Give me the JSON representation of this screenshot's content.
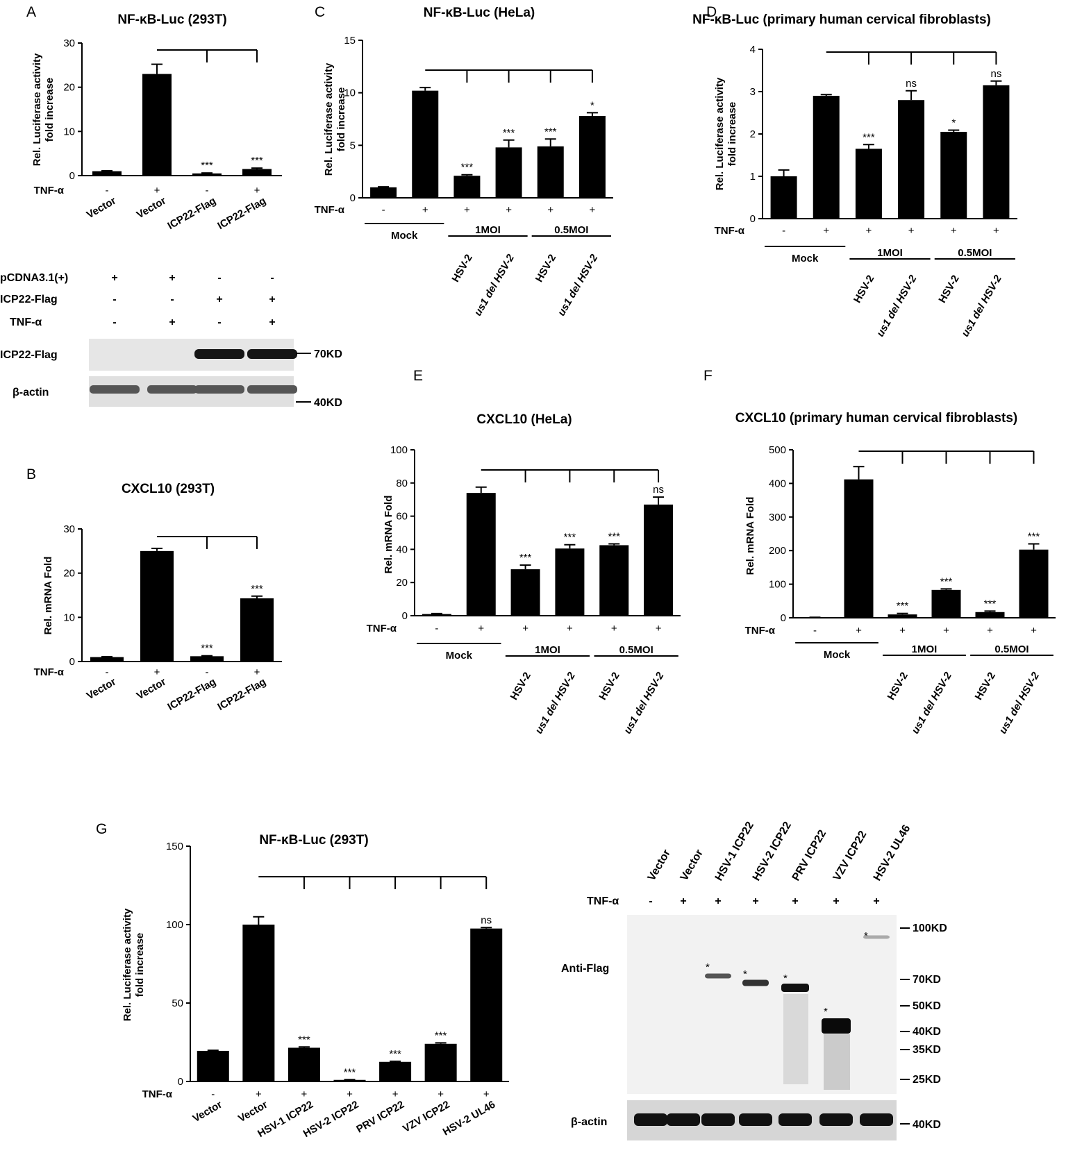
{
  "chart_data": [
    {
      "id": "A",
      "panel_label": "A",
      "type": "bar",
      "title": "NF-κB-Luc (293T)",
      "ylabel": [
        "Rel. Luciferase activity",
        "fold increase"
      ],
      "ylim": [
        0,
        30
      ],
      "yticks": [
        "0",
        "10",
        "20",
        "30"
      ],
      "categories": [
        "Vector",
        "Vector",
        "ICP22-Flag",
        "ICP22-Flag"
      ],
      "values": [
        1,
        23,
        0.5,
        1.5
      ],
      "errors": [
        0.1,
        2.2,
        0.1,
        0.2
      ],
      "significance": [
        "",
        "",
        "***",
        "***"
      ],
      "treatment_label": "TNF-α",
      "treatment": [
        "-",
        "+",
        "-",
        "+"
      ]
    },
    {
      "id": "B",
      "panel_label": "B",
      "type": "bar",
      "title": "CXCL10 (293T)",
      "ylabel": [
        "Rel. mRNA Fold"
      ],
      "ylim": [
        0,
        30
      ],
      "yticks": [
        "0",
        "10",
        "20",
        "30"
      ],
      "categories": [
        "Vector",
        "Vector",
        "ICP22-Flag",
        "ICP22-Flag"
      ],
      "values": [
        1,
        25,
        1.2,
        14.3
      ],
      "errors": [
        0.1,
        0.6,
        0.1,
        0.5
      ],
      "significance": [
        "",
        "",
        "***",
        "***"
      ],
      "treatment_label": "TNF-α",
      "treatment": [
        "-",
        "+",
        "-",
        "+"
      ]
    },
    {
      "id": "C",
      "panel_label": "C",
      "type": "bar",
      "title": "NF-κB-Luc (HeLa)",
      "ylabel": [
        "Rel. Luciferase activity",
        "fold increase"
      ],
      "ylim": [
        0,
        15
      ],
      "yticks": [
        "0",
        "5",
        "10",
        "15"
      ],
      "categories": [
        "",
        "",
        "HSV-2",
        "us1 del HSV-2",
        "HSV-2",
        "us1 del HSV-2"
      ],
      "values": [
        1,
        10.2,
        2.1,
        4.8,
        4.9,
        7.8
      ],
      "errors": [
        0.05,
        0.3,
        0.1,
        0.7,
        0.7,
        0.3
      ],
      "significance": [
        "",
        "",
        "***",
        "***",
        "***",
        "*"
      ],
      "treatment_label": "TNF-α",
      "treatment": [
        "-",
        "+",
        "+",
        "+",
        "+",
        "+"
      ],
      "groups": [
        "Mock",
        "1MOI",
        "0.5MOI"
      ]
    },
    {
      "id": "D",
      "panel_label": "D",
      "type": "bar",
      "title": "NF-κB-Luc (primary human cervical fibroblasts)",
      "ylabel": [
        "Rel. Luciferase activity",
        "fold increase"
      ],
      "ylim": [
        0,
        4
      ],
      "yticks": [
        "0",
        "1",
        "2",
        "3",
        "4"
      ],
      "categories": [
        "",
        "",
        "HSV-2",
        "us1 del HSV-2",
        "HSV-2",
        "us1 del HSV-2"
      ],
      "values": [
        1,
        2.9,
        1.65,
        2.8,
        2.05,
        3.15
      ],
      "errors": [
        0.15,
        0.03,
        0.1,
        0.22,
        0.04,
        0.1
      ],
      "significance": [
        "",
        "",
        "***",
        "ns",
        "*",
        "ns"
      ],
      "treatment_label": "TNF-α",
      "treatment": [
        "-",
        "+",
        "+",
        "+",
        "+",
        "+"
      ],
      "groups": [
        "Mock",
        "1MOI",
        "0.5MOI"
      ]
    },
    {
      "id": "E",
      "panel_label": "E",
      "type": "bar",
      "title": "CXCL10 (HeLa)",
      "ylabel": [
        "Rel. mRNA Fold"
      ],
      "ylim": [
        0,
        100
      ],
      "yticks": [
        "0",
        "20",
        "40",
        "60",
        "80",
        "100"
      ],
      "categories": [
        "",
        "",
        "HSV-2",
        "us1 del HSV-2",
        "HSV-2",
        "us1 del HSV-2"
      ],
      "values": [
        1,
        74,
        28,
        40.5,
        42.5,
        67
      ],
      "errors": [
        0.3,
        3.5,
        2.5,
        2.3,
        0.8,
        4.5
      ],
      "significance": [
        "",
        "",
        "***",
        "***",
        "***",
        "ns"
      ],
      "treatment_label": "TNF-α",
      "treatment": [
        "-",
        "+",
        "+",
        "+",
        "+",
        "+"
      ],
      "groups": [
        "Mock",
        "1MOI",
        "0.5MOI"
      ]
    },
    {
      "id": "F",
      "panel_label": "F",
      "type": "bar",
      "title": "CXCL10 (primary human cervical fibroblasts)",
      "ylabel": [
        "Rel. mRNA Fold"
      ],
      "ylim": [
        0,
        500
      ],
      "yticks": [
        "0",
        "100",
        "200",
        "300",
        "400",
        "500"
      ],
      "categories": [
        "",
        "",
        "HSV-2",
        "us1 del HSV-2",
        "HSV-2",
        "us1 del HSV-2"
      ],
      "values": [
        1,
        412,
        10,
        83,
        17,
        203
      ],
      "errors": [
        0.5,
        38,
        3,
        3,
        3,
        17
      ],
      "significance": [
        "",
        "",
        "***",
        "***",
        "***",
        "***"
      ],
      "treatment_label": "TNF-α",
      "treatment": [
        "-",
        "+",
        "+",
        "+",
        "+",
        "+"
      ],
      "groups": [
        "Mock",
        "1MOI",
        "0.5MOI"
      ]
    },
    {
      "id": "G",
      "panel_label": "G",
      "type": "bar",
      "title": "NF-κB-Luc (293T)",
      "ylabel": [
        "Rel. Luciferase activity",
        "fold increase"
      ],
      "ylim": [
        0,
        150
      ],
      "yticks": [
        "0",
        "50",
        "100",
        "150"
      ],
      "categories": [
        "Vector",
        "Vector",
        "HSV-1 ICP22",
        "HSV-2 ICP22",
        "PRV ICP22",
        "VZV ICP22",
        "HSV-2 UL46"
      ],
      "values": [
        19.5,
        100,
        21.5,
        1,
        12.5,
        24,
        97.5
      ],
      "errors": [
        0.4,
        5,
        0.5,
        0.2,
        0.4,
        0.6,
        0.6
      ],
      "significance": [
        "",
        "",
        "***",
        "***",
        "***",
        "***",
        "ns"
      ],
      "treatment_label": "TNF-α",
      "treatment": [
        "-",
        "+",
        "+",
        "+",
        "+",
        "+",
        "+"
      ]
    }
  ],
  "western_A": {
    "rows": [
      {
        "label": "pCDNA3.1(+)",
        "values": [
          "+",
          "+",
          "-",
          "-"
        ]
      },
      {
        "label": "ICP22-Flag",
        "values": [
          "-",
          "-",
          "+",
          "+"
        ]
      },
      {
        "label": "TNF-α",
        "values": [
          "-",
          "+",
          "-",
          "+"
        ]
      }
    ],
    "band_labels": [
      "ICP22-Flag",
      "β-actin"
    ],
    "markers": [
      "70KD",
      "40KD"
    ]
  },
  "western_G": {
    "lanes": [
      "Vector",
      "Vector",
      "HSV-1 ICP22",
      "HSV-2 ICP22",
      "PRV ICP22",
      "VZV ICP22",
      "HSV-2 UL46"
    ],
    "treatment_label": "TNF-α",
    "treatment": [
      "-",
      "+",
      "+",
      "+",
      "+",
      "+",
      "+"
    ],
    "band_labels": [
      "Anti-Flag",
      "β-actin"
    ],
    "markers": [
      "100KD",
      "70KD",
      "50KD",
      "40KD",
      "35KD",
      "25KD"
    ],
    "actin_marker": "40KD"
  }
}
